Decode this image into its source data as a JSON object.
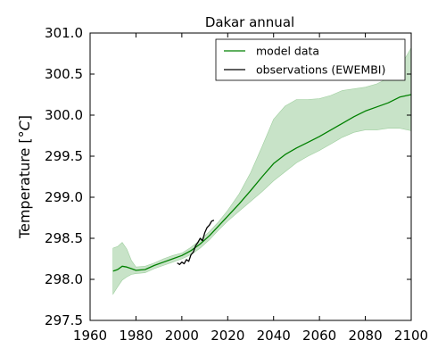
{
  "chart_data": {
    "type": "line",
    "title": "Dakar annual",
    "xlabel": "",
    "ylabel": "Temperature [°C]",
    "ylabel_text": "Temperature [",
    "ylabel_unit_symbol": "°C",
    "ylabel_close": "]",
    "xlim": [
      1960,
      2100
    ],
    "ylim": [
      297.5,
      301.0
    ],
    "xticks": [
      1960,
      1980,
      2000,
      2020,
      2040,
      2060,
      2080,
      2100
    ],
    "yticks": [
      297.5,
      298.0,
      298.5,
      299.0,
      299.5,
      300.0,
      300.5,
      301.0
    ],
    "xtick_labels": [
      "1960",
      "1980",
      "2000",
      "2020",
      "2040",
      "2060",
      "2080",
      "2100"
    ],
    "ytick_labels": [
      "297.5",
      "298.0",
      "298.5",
      "299.0",
      "299.5",
      "300.0",
      "300.5",
      "301.0"
    ],
    "grid": false,
    "legend_position": "top-right",
    "series": [
      {
        "name": "model data",
        "color": "#008000",
        "band_color": "#c8e3c8",
        "x": [
          1970,
          1972,
          1974,
          1976,
          1978,
          1980,
          1984,
          1988,
          1992,
          1996,
          2000,
          2004,
          2008,
          2012,
          2016,
          2020,
          2025,
          2030,
          2035,
          2040,
          2045,
          2050,
          2055,
          2060,
          2065,
          2070,
          2075,
          2080,
          2085,
          2090,
          2095,
          2100
        ],
        "y": [
          298.1,
          298.12,
          298.16,
          298.15,
          298.13,
          298.11,
          298.12,
          298.17,
          298.21,
          298.25,
          298.29,
          298.35,
          298.43,
          298.53,
          298.65,
          298.77,
          298.92,
          299.08,
          299.25,
          299.41,
          299.52,
          299.6,
          299.67,
          299.74,
          299.82,
          299.9,
          299.98,
          300.05,
          300.1,
          300.15,
          300.22,
          300.25
        ],
        "upper": [
          298.38,
          298.4,
          298.45,
          298.37,
          298.23,
          298.15,
          298.16,
          298.2,
          298.25,
          298.29,
          298.32,
          298.39,
          298.48,
          298.58,
          298.7,
          298.84,
          299.04,
          299.3,
          299.62,
          299.95,
          300.11,
          300.19,
          300.19,
          300.2,
          300.24,
          300.3,
          300.32,
          300.34,
          300.38,
          300.45,
          300.58,
          300.82
        ],
        "lower": [
          297.82,
          297.91,
          297.99,
          298.03,
          298.06,
          298.07,
          298.08,
          298.13,
          298.17,
          298.21,
          298.25,
          298.3,
          298.38,
          298.48,
          298.6,
          298.71,
          298.83,
          298.95,
          299.07,
          299.2,
          299.31,
          299.42,
          299.5,
          299.57,
          299.65,
          299.73,
          299.79,
          299.82,
          299.82,
          299.84,
          299.84,
          299.81
        ]
      },
      {
        "name": "observations (EWEMBI)",
        "color": "#000000",
        "x": [
          1998,
          1999,
          2000,
          2001,
          2002,
          2003,
          2004,
          2005,
          2006,
          2007,
          2008,
          2009,
          2010,
          2011,
          2012,
          2013,
          2014
        ],
        "y": [
          298.2,
          298.18,
          298.21,
          298.19,
          298.24,
          298.22,
          298.3,
          298.33,
          298.41,
          298.45,
          298.5,
          298.47,
          298.57,
          298.63,
          298.66,
          298.71,
          298.72
        ]
      }
    ]
  }
}
